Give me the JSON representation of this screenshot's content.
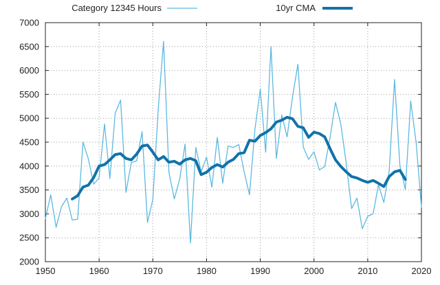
{
  "chart_data": {
    "type": "line",
    "title": "",
    "xlabel": "",
    "ylabel": "",
    "xlim": [
      1950,
      2020
    ],
    "ylim": [
      2000,
      7000
    ],
    "xticks": [
      1950,
      1960,
      1970,
      1980,
      1990,
      2000,
      2010,
      2020
    ],
    "yticks": [
      2000,
      2500,
      3000,
      3500,
      4000,
      4500,
      5000,
      5500,
      6000,
      6500,
      7000
    ],
    "grid": true,
    "legend_position": "top",
    "series": [
      {
        "name": "Category 12345 Hours",
        "color": "#5bb8e0",
        "style": "thin",
        "x": [
          1950,
          1951,
          1952,
          1953,
          1954,
          1955,
          1956,
          1957,
          1958,
          1959,
          1960,
          1961,
          1962,
          1963,
          1964,
          1965,
          1966,
          1967,
          1968,
          1969,
          1970,
          1971,
          1972,
          1973,
          1974,
          1975,
          1976,
          1977,
          1978,
          1979,
          1980,
          1981,
          1982,
          1983,
          1984,
          1985,
          1986,
          1987,
          1988,
          1989,
          1990,
          1991,
          1992,
          1993,
          1994,
          1995,
          1996,
          1997,
          1998,
          1999,
          2000,
          2001,
          2002,
          2003,
          2004,
          2005,
          2006,
          2007,
          2008,
          2009,
          2010,
          2011,
          2012,
          2013,
          2014,
          2015,
          2016,
          2017,
          2018,
          2019,
          2020
        ],
        "values": [
          2900,
          3400,
          2720,
          3150,
          3330,
          2870,
          2890,
          4500,
          4150,
          3620,
          3750,
          4880,
          3740,
          5110,
          5380,
          3450,
          4070,
          4110,
          4720,
          2820,
          3300,
          5180,
          6610,
          3870,
          3310,
          3730,
          4460,
          2390,
          4390,
          3880,
          4190,
          3560,
          4600,
          3640,
          4420,
          4390,
          4450,
          3880,
          3400,
          4770,
          5610,
          4290,
          6500,
          4160,
          5070,
          4610,
          5450,
          6130,
          4400,
          4140,
          4300,
          3920,
          3990,
          4610,
          5330,
          4870,
          4060,
          3110,
          3330,
          2690,
          2950,
          3000,
          3610,
          3240,
          3900,
          5810,
          4000,
          3510,
          5360,
          4500,
          3140
        ]
      },
      {
        "name": "10yr CMA",
        "color": "#1272a8",
        "style": "thick",
        "x": [
          1955,
          1956,
          1957,
          1958,
          1959,
          1960,
          1961,
          1962,
          1963,
          1964,
          1965,
          1966,
          1967,
          1968,
          1969,
          1970,
          1971,
          1972,
          1973,
          1974,
          1975,
          1976,
          1977,
          1978,
          1979,
          1980,
          1981,
          1982,
          1983,
          1984,
          1985,
          1986,
          1987,
          1988,
          1989,
          1990,
          1991,
          1992,
          1993,
          1994,
          1995,
          1996,
          1997,
          1998,
          1999,
          2000,
          2001,
          2002,
          2003,
          2004,
          2005,
          2006,
          2007,
          2008,
          2009,
          2010,
          2011,
          2012,
          2013,
          2014,
          2015,
          2016,
          2017
        ],
        "values": [
          3310,
          3380,
          3560,
          3600,
          3760,
          4000,
          4030,
          4130,
          4240,
          4260,
          4160,
          4130,
          4250,
          4420,
          4440,
          4290,
          4130,
          4200,
          4080,
          4100,
          4040,
          4130,
          4160,
          4110,
          3820,
          3870,
          3970,
          4030,
          3980,
          4080,
          4140,
          4260,
          4280,
          4540,
          4520,
          4640,
          4700,
          4780,
          4920,
          4960,
          5020,
          4990,
          4830,
          4800,
          4600,
          4710,
          4680,
          4610,
          4360,
          4130,
          3990,
          3880,
          3780,
          3750,
          3700,
          3660,
          3700,
          3640,
          3570,
          3780,
          3880,
          3910,
          3720
        ]
      }
    ]
  }
}
